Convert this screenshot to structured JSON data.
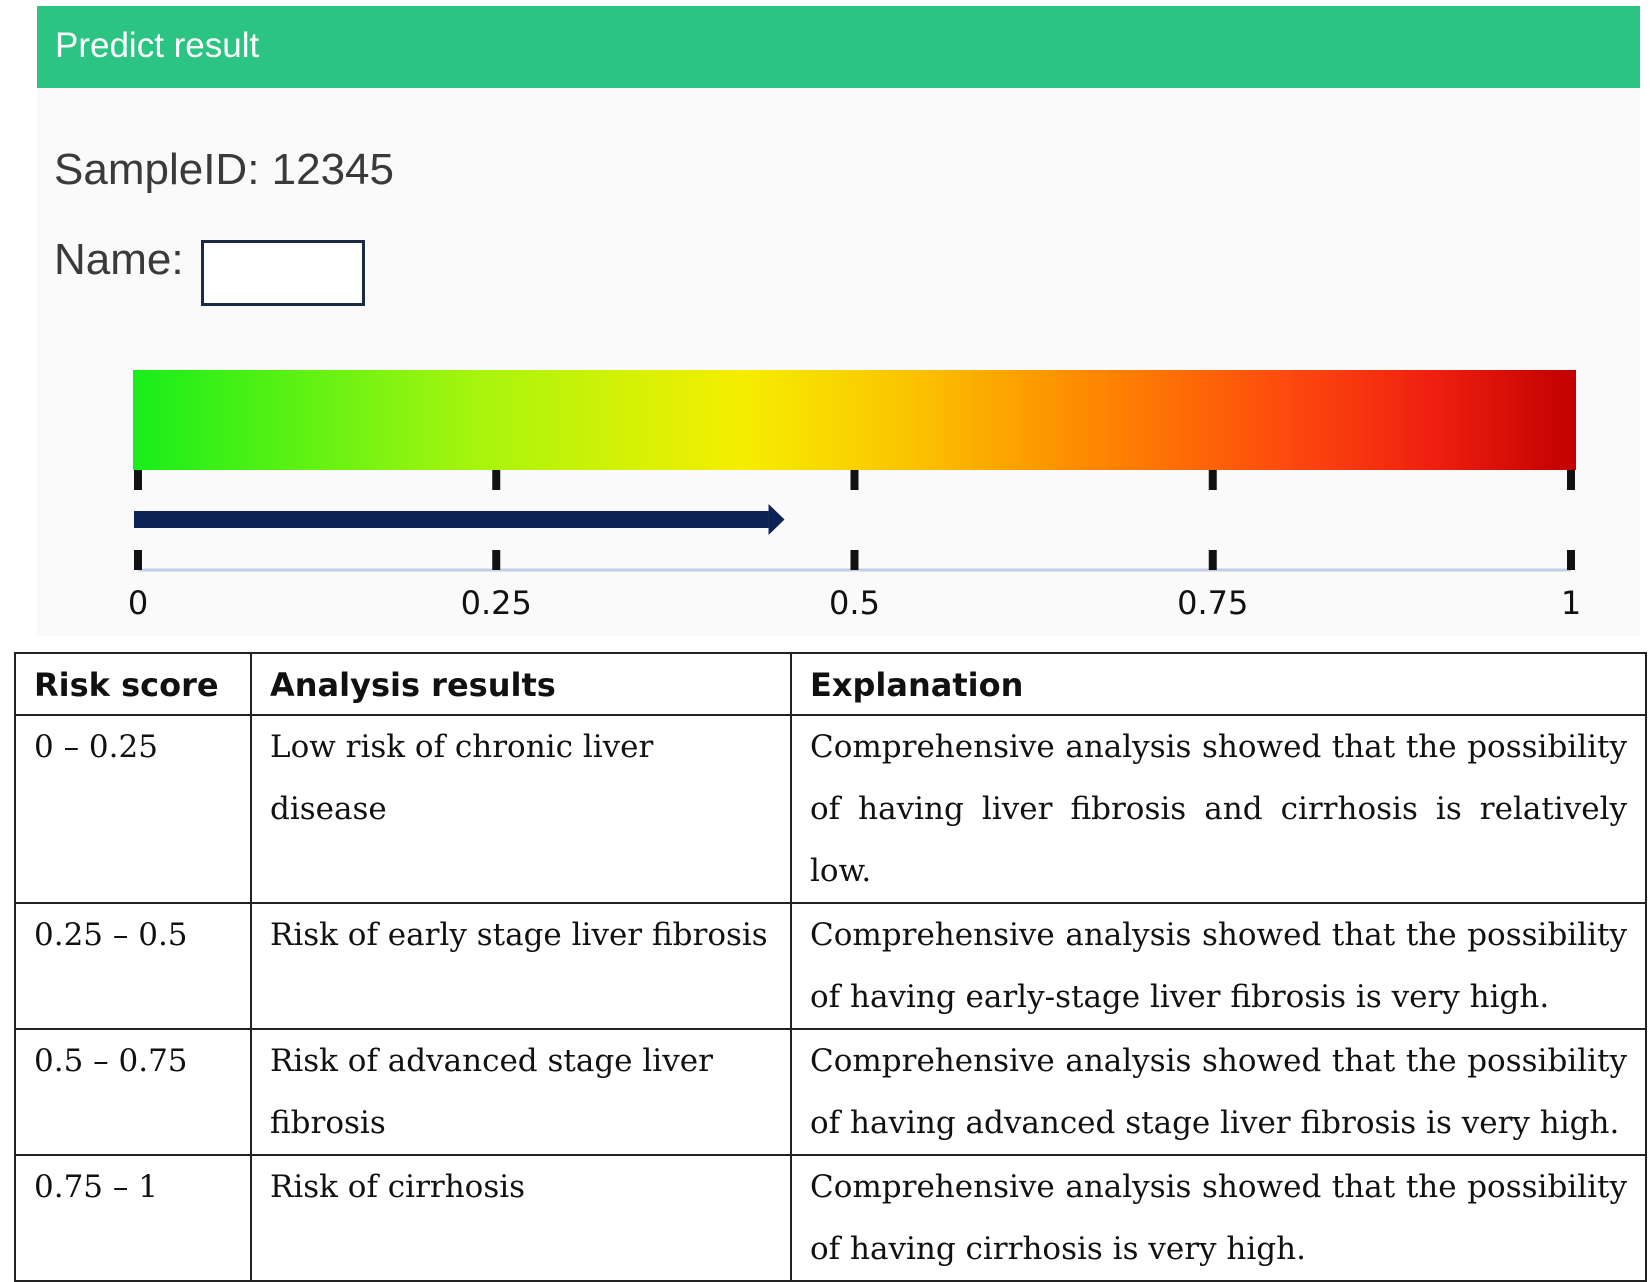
{
  "header": {
    "title": "Predict result"
  },
  "sample": {
    "id_label": "SampleID: 12345"
  },
  "name": {
    "label": "Name:",
    "value": ""
  },
  "chart_data": {
    "type": "bar",
    "orientation": "horizontal",
    "value": 0.44,
    "xlim": [
      0,
      1
    ],
    "ticks": [
      0,
      0.25,
      0.5,
      0.75,
      1
    ],
    "tick_labels": [
      "0",
      "0.25",
      "0.5",
      "0.75",
      "1"
    ],
    "color_scale": [
      "#18ee1a",
      "#f5ee00",
      "#fe8a00",
      "#f01f10",
      "#c10000"
    ],
    "bar_color": "#0d2357"
  },
  "table": {
    "headers": [
      "Risk score",
      "Analysis results",
      "Explanation"
    ],
    "rows": [
      [
        "0 – 0.25",
        "Low risk of chronic liver disease",
        "Comprehensive analysis showed that the possibility of having liver fibrosis and cirrhosis is relatively low."
      ],
      [
        "0.25 – 0.5",
        "Risk of early stage liver fibrosis",
        "Comprehensive analysis showed that the possibility of having early-stage liver fibrosis is very high."
      ],
      [
        "0.5 – 0.75",
        "Risk of advanced stage liver fibrosis",
        "Comprehensive analysis showed that the possibility of having advanced stage liver fibrosis is very high."
      ],
      [
        "0.75 – 1",
        "Risk of cirrhosis",
        "Comprehensive analysis showed that the possibility of having cirrhosis is very high."
      ]
    ]
  }
}
